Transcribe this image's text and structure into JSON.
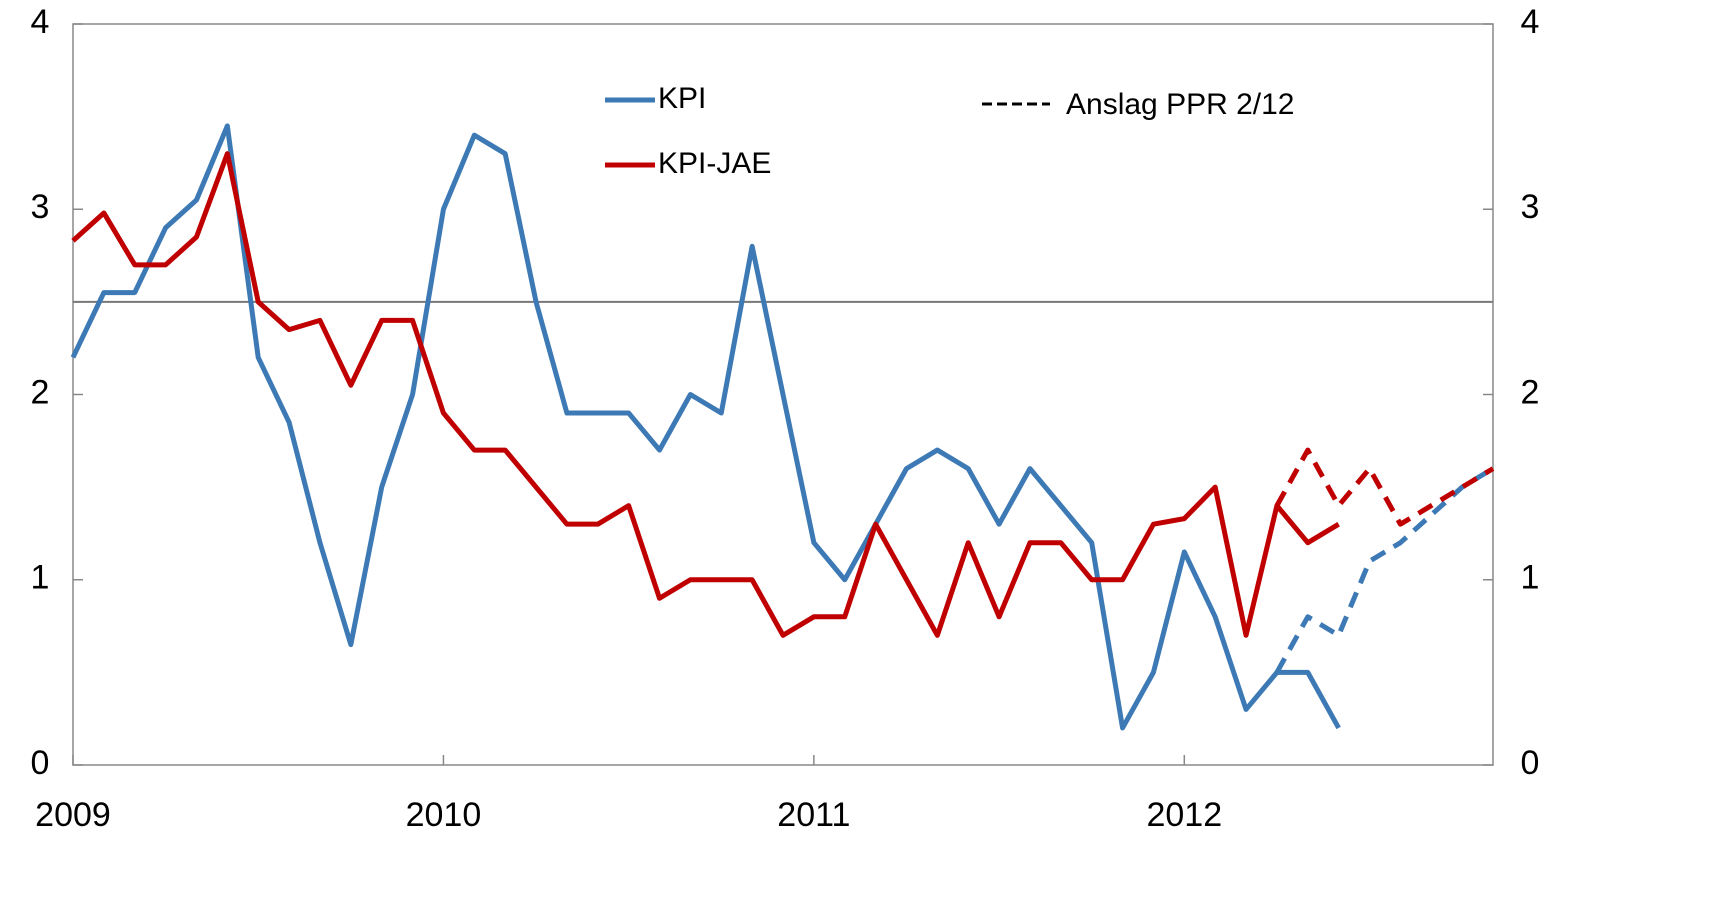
{
  "chart_data": {
    "type": "line",
    "categories": [
      "2009",
      null,
      null,
      null,
      null,
      null,
      null,
      null,
      null,
      null,
      null,
      null,
      "2010",
      null,
      null,
      null,
      null,
      null,
      null,
      null,
      null,
      null,
      null,
      null,
      "2011",
      null,
      null,
      null,
      null,
      null,
      null,
      null,
      null,
      null,
      null,
      null,
      "2012",
      null,
      null,
      null,
      null,
      null,
      null,
      null,
      null,
      null,
      null
    ],
    "series": [
      {
        "name": "KPI",
        "color": "#3d7ab5",
        "values": [
          2.2,
          2.55,
          2.55,
          2.9,
          3.05,
          3.45,
          2.2,
          1.85,
          1.2,
          0.65,
          1.5,
          2.0,
          3.0,
          3.4,
          3.3,
          2.5,
          1.9,
          1.9,
          1.9,
          1.7,
          2.0,
          1.9,
          2.8,
          2.0,
          1.2,
          1.0,
          1.3,
          1.6,
          1.7,
          1.6,
          1.3,
          1.6,
          1.4,
          1.2,
          0.2,
          0.5,
          1.15,
          0.8,
          0.3,
          0.5,
          0.5,
          0.2,
          null,
          null,
          null,
          null,
          null
        ]
      },
      {
        "name": "KPI-JAE",
        "color": "#c00000",
        "values": [
          2.83,
          2.98,
          2.7,
          2.7,
          2.85,
          3.3,
          2.5,
          2.35,
          2.4,
          2.05,
          2.4,
          2.4,
          1.9,
          1.7,
          1.7,
          1.5,
          1.3,
          1.3,
          1.4,
          0.9,
          1.0,
          1.0,
          1.0,
          0.7,
          0.8,
          0.8,
          1.3,
          1.0,
          0.7,
          1.2,
          0.8,
          1.2,
          1.2,
          1.0,
          1.0,
          1.3,
          1.33,
          1.5,
          0.7,
          1.4,
          1.2,
          1.3,
          null,
          null,
          null,
          null,
          null
        ]
      }
    ],
    "forecast_series": [
      {
        "color": "#3d7ab5",
        "dashed": true,
        "values": [
          null,
          null,
          null,
          null,
          null,
          null,
          null,
          null,
          null,
          null,
          null,
          null,
          null,
          null,
          null,
          null,
          null,
          null,
          null,
          null,
          null,
          null,
          null,
          null,
          null,
          null,
          null,
          null,
          null,
          null,
          null,
          null,
          null,
          null,
          null,
          null,
          null,
          null,
          null,
          0.5,
          0.8,
          0.7,
          1.1,
          1.2,
          1.35,
          1.5,
          1.6
        ]
      },
      {
        "color": "#c00000",
        "dashed": true,
        "values": [
          null,
          null,
          null,
          null,
          null,
          null,
          null,
          null,
          null,
          null,
          null,
          null,
          null,
          null,
          null,
          null,
          null,
          null,
          null,
          null,
          null,
          null,
          null,
          null,
          null,
          null,
          null,
          null,
          null,
          null,
          null,
          null,
          null,
          null,
          null,
          null,
          null,
          null,
          null,
          1.4,
          1.7,
          1.4,
          1.6,
          1.3,
          1.4,
          1.5,
          1.6
        ]
      }
    ],
    "forecast_legend": {
      "name": "Anslag PPR 2/12",
      "color": "#000000"
    },
    "reference_line": 2.5,
    "ylim": [
      0,
      4
    ],
    "yticks": [
      0,
      1,
      2,
      3,
      4
    ],
    "y2lim": [
      0,
      4
    ],
    "y2ticks": [
      0,
      1,
      2,
      3,
      4
    ],
    "grid": false
  }
}
